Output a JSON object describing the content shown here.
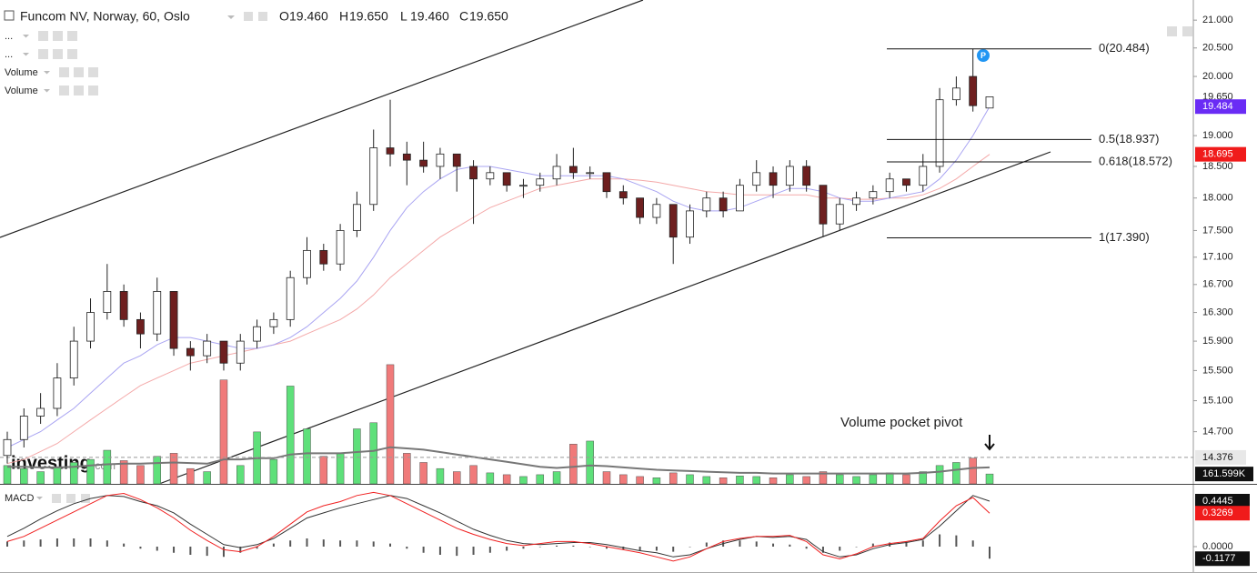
{
  "chart_data": {
    "type": "candlestick",
    "title": "Funcom NV, Norway, 60, Oslo",
    "ohlc": [
      {
        "key": "O",
        "value": 19.46,
        "label": "19.460"
      },
      {
        "key": "H",
        "value": 19.65,
        "label": "19.650"
      },
      {
        "key": "L",
        "value": 19.46,
        "label": "19.460"
      },
      {
        "key": "C",
        "value": 19.65,
        "label": "19.650"
      }
    ],
    "indicators": [
      "...",
      "...",
      "Volume",
      "Volume"
    ],
    "logo": {
      "name": "investing",
      "suffix": ".com"
    },
    "log_scale": true,
    "ylim": [
      14.05,
      21.37
    ],
    "yticks": [
      {
        "value": 21,
        "label": "21.000"
      },
      {
        "value": 20.5,
        "label": "20.500"
      },
      {
        "value": 20,
        "label": "20.000"
      },
      {
        "value": 19,
        "label": "19.000"
      },
      {
        "value": 18.5,
        "label": "18.500"
      },
      {
        "value": 18,
        "label": "18.000"
      },
      {
        "value": 17.5,
        "label": "17.500"
      },
      {
        "value": 17.1,
        "label": "17.100"
      },
      {
        "value": 16.7,
        "label": "16.700"
      },
      {
        "value": 16.3,
        "label": "16.300"
      },
      {
        "value": 15.9,
        "label": "15.900"
      },
      {
        "value": 15.5,
        "label": "15.500"
      },
      {
        "value": 15.1,
        "label": "15.100"
      },
      {
        "value": 14.7,
        "label": "14.700"
      }
    ],
    "up_color": "#ffffff",
    "down_color": "#6e1f1f",
    "candles": {
      "open": [
        14.4,
        14.6,
        14.9,
        15.0,
        15.4,
        15.9,
        16.3,
        16.6,
        16.2,
        16.0,
        16.6,
        15.8,
        15.7,
        15.9,
        15.6,
        15.9,
        16.1,
        16.2,
        16.8,
        17.2,
        17.0,
        17.5,
        17.9,
        18.8,
        18.7,
        18.6,
        18.5,
        18.7,
        18.5,
        18.3,
        18.4,
        18.2,
        18.2,
        18.3,
        18.5,
        18.4,
        18.4,
        18.1,
        18.0,
        17.7,
        17.9,
        17.4,
        17.8,
        18.0,
        17.8,
        18.2,
        18.4,
        18.2,
        18.5,
        18.2,
        17.6,
        17.9,
        18.0,
        18.1,
        18.3,
        18.2,
        18.5,
        19.6,
        20.0,
        19.46
      ],
      "high": [
        14.7,
        15.0,
        15.2,
        15.6,
        16.1,
        16.5,
        17.0,
        16.7,
        16.3,
        16.8,
        16.6,
        15.9,
        16.0,
        15.9,
        16.0,
        16.2,
        16.3,
        16.9,
        17.4,
        17.3,
        17.6,
        18.1,
        19.1,
        19.6,
        18.9,
        18.9,
        18.8,
        18.7,
        18.6,
        18.5,
        18.4,
        18.3,
        18.4,
        18.7,
        18.8,
        18.5,
        18.4,
        18.2,
        18.0,
        18.0,
        17.9,
        17.9,
        18.1,
        18.1,
        18.3,
        18.6,
        18.5,
        18.6,
        18.6,
        18.2,
        18.0,
        18.1,
        18.2,
        18.4,
        18.3,
        18.7,
        19.8,
        20.0,
        20.48,
        19.65
      ],
      "low": [
        14.3,
        14.5,
        14.8,
        14.9,
        15.3,
        15.8,
        16.2,
        16.1,
        15.8,
        15.9,
        15.7,
        15.5,
        15.6,
        15.5,
        15.5,
        15.8,
        16.0,
        16.1,
        16.7,
        16.9,
        16.9,
        17.4,
        17.8,
        18.5,
        18.2,
        18.4,
        18.3,
        18.1,
        17.6,
        18.2,
        18.1,
        18.0,
        18.1,
        18.2,
        18.3,
        18.3,
        18.0,
        17.9,
        17.6,
        17.6,
        17.0,
        17.3,
        17.7,
        17.7,
        17.8,
        18.1,
        18.0,
        18.1,
        18.1,
        17.4,
        17.5,
        17.8,
        17.9,
        18.0,
        18.1,
        18.1,
        18.4,
        19.5,
        19.4,
        19.46
      ],
      "close": [
        14.6,
        14.9,
        15.0,
        15.4,
        15.9,
        16.3,
        16.6,
        16.2,
        16.0,
        16.6,
        15.8,
        15.7,
        15.9,
        15.6,
        15.9,
        16.1,
        16.2,
        16.8,
        17.2,
        17.0,
        17.5,
        17.9,
        18.8,
        18.7,
        18.6,
        18.5,
        18.7,
        18.5,
        18.3,
        18.4,
        18.2,
        18.2,
        18.3,
        18.5,
        18.4,
        18.4,
        18.1,
        18.0,
        17.7,
        17.9,
        17.4,
        17.8,
        18.0,
        17.8,
        18.2,
        18.4,
        18.2,
        18.5,
        18.2,
        17.6,
        17.9,
        18.0,
        18.1,
        18.3,
        18.2,
        18.5,
        19.6,
        19.8,
        19.5,
        19.65
      ]
    },
    "last_price": {
      "value": 19.65,
      "label": "19.650"
    },
    "fast_ma": {
      "color": "#a9a4f2",
      "last": {
        "value": 19.484,
        "label": "19.484"
      },
      "label_color": "#6a2cf5",
      "values": [
        14.5,
        14.6,
        14.7,
        14.85,
        15.0,
        15.2,
        15.4,
        15.6,
        15.7,
        15.85,
        15.95,
        15.95,
        15.9,
        15.85,
        15.8,
        15.8,
        15.85,
        15.95,
        16.1,
        16.3,
        16.5,
        16.75,
        17.1,
        17.5,
        17.85,
        18.1,
        18.3,
        18.45,
        18.5,
        18.5,
        18.45,
        18.4,
        18.35,
        18.35,
        18.35,
        18.35,
        18.35,
        18.3,
        18.2,
        18.1,
        17.95,
        17.85,
        17.8,
        17.8,
        17.85,
        17.95,
        18.05,
        18.15,
        18.15,
        18.1,
        18.0,
        17.95,
        17.95,
        18.0,
        18.05,
        18.1,
        18.3,
        18.6,
        19.0,
        19.484
      ]
    },
    "slow_ma": {
      "color": "#f4a9a9",
      "last": {
        "value": 18.695,
        "label": "18.695"
      },
      "label_color": "#f01b1b",
      "values": [
        14.3,
        14.35,
        14.45,
        14.55,
        14.7,
        14.85,
        15.0,
        15.15,
        15.3,
        15.4,
        15.5,
        15.6,
        15.65,
        15.7,
        15.75,
        15.8,
        15.85,
        15.9,
        16.0,
        16.1,
        16.2,
        16.35,
        16.55,
        16.8,
        17.0,
        17.2,
        17.4,
        17.55,
        17.7,
        17.85,
        17.95,
        18.05,
        18.15,
        18.2,
        18.25,
        18.3,
        18.3,
        18.3,
        18.28,
        18.25,
        18.2,
        18.15,
        18.1,
        18.08,
        18.05,
        18.05,
        18.05,
        18.05,
        18.05,
        18.0,
        18.0,
        17.98,
        17.98,
        18.0,
        18.0,
        18.05,
        18.15,
        18.3,
        18.5,
        18.695
      ]
    },
    "fib_levels": [
      {
        "value": 20.484,
        "label": "0(20.484)"
      },
      {
        "value": 18.937,
        "label": "0.5(18.937)"
      },
      {
        "value": 18.572,
        "label": "0.618(18.572)"
      },
      {
        "value": 17.39,
        "label": "1(17.390)"
      }
    ],
    "price_line": {
      "value": 14.376,
      "label": "14.376"
    },
    "annotation": "Volume pocket pivot",
    "volume": {
      "ylim": [
        0,
        3600000
      ],
      "up_color": "#5ee07a",
      "down_color": "#f07a7a",
      "values": [
        300000,
        250000,
        200000,
        280000,
        350000,
        400000,
        550000,
        380000,
        300000,
        450000,
        500000,
        250000,
        200000,
        1700000,
        300000,
        850000,
        400000,
        1600000,
        900000,
        450000,
        500000,
        900000,
        1000000,
        1950000,
        500000,
        350000,
        250000,
        200000,
        300000,
        180000,
        150000,
        120000,
        150000,
        200000,
        650000,
        700000,
        200000,
        150000,
        120000,
        100000,
        180000,
        150000,
        120000,
        100000,
        130000,
        120000,
        100000,
        150000,
        120000,
        200000,
        150000,
        120000,
        150000,
        180000,
        150000,
        200000,
        300000,
        350000,
        420000,
        161599
      ],
      "last": {
        "value": 161599,
        "label": "161.599K"
      },
      "ma_color": "#777777",
      "ma": [
        280000,
        280000,
        270000,
        270000,
        280000,
        300000,
        320000,
        330000,
        330000,
        340000,
        350000,
        340000,
        330000,
        400000,
        400000,
        420000,
        420000,
        480000,
        500000,
        500000,
        500000,
        520000,
        540000,
        600000,
        580000,
        560000,
        520000,
        480000,
        440000,
        400000,
        360000,
        320000,
        280000,
        260000,
        280000,
        300000,
        290000,
        270000,
        250000,
        230000,
        220000,
        210000,
        200000,
        190000,
        180000,
        180000,
        170000,
        170000,
        170000,
        170000,
        170000,
        170000,
        170000,
        170000,
        170000,
        180000,
        200000,
        230000,
        260000,
        270000
      ]
    },
    "macd": {
      "title": "MACD",
      "ylim": [
        -0.24,
        0.56
      ],
      "yticks": [
        {
          "value": 0,
          "label": "0.0000"
        }
      ],
      "macd_color": "#333333",
      "signal_color": "#f02020",
      "hist_color": "#555555",
      "macd": [
        0.1,
        0.18,
        0.27,
        0.35,
        0.42,
        0.47,
        0.5,
        0.49,
        0.44,
        0.4,
        0.33,
        0.22,
        0.12,
        0.02,
        -0.01,
        0.02,
        0.08,
        0.18,
        0.28,
        0.33,
        0.38,
        0.42,
        0.46,
        0.5,
        0.47,
        0.4,
        0.33,
        0.25,
        0.17,
        0.11,
        0.06,
        0.03,
        0.02,
        0.03,
        0.04,
        0.04,
        0.02,
        -0.01,
        -0.04,
        -0.06,
        -0.1,
        -0.08,
        -0.02,
        0.03,
        0.07,
        0.1,
        0.09,
        0.1,
        0.07,
        -0.05,
        -0.1,
        -0.08,
        -0.02,
        0.02,
        0.04,
        0.07,
        0.2,
        0.35,
        0.5,
        0.4445
      ],
      "signal": [
        0.05,
        0.1,
        0.18,
        0.26,
        0.34,
        0.42,
        0.5,
        0.52,
        0.46,
        0.38,
        0.28,
        0.16,
        0.06,
        -0.03,
        -0.05,
        0.0,
        0.1,
        0.22,
        0.34,
        0.4,
        0.44,
        0.5,
        0.53,
        0.5,
        0.42,
        0.34,
        0.26,
        0.18,
        0.12,
        0.07,
        0.03,
        0.01,
        0.03,
        0.05,
        0.05,
        0.03,
        0.0,
        -0.03,
        -0.06,
        -0.1,
        -0.14,
        -0.1,
        -0.02,
        0.05,
        0.08,
        0.1,
        0.1,
        0.11,
        0.05,
        -0.08,
        -0.12,
        -0.07,
        0.0,
        0.03,
        0.05,
        0.08,
        0.25,
        0.4,
        0.48,
        0.3269
      ],
      "histogram": [
        0.05,
        0.06,
        0.07,
        0.08,
        0.08,
        0.08,
        0.06,
        0.03,
        -0.02,
        -0.04,
        -0.06,
        -0.08,
        -0.09,
        -0.1,
        -0.06,
        -0.02,
        0.03,
        0.06,
        0.08,
        0.07,
        0.06,
        0.06,
        0.05,
        0.03,
        -0.02,
        -0.06,
        -0.08,
        -0.09,
        -0.08,
        -0.06,
        -0.04,
        -0.02,
        0.0,
        0.01,
        0.01,
        0.0,
        -0.02,
        -0.03,
        -0.04,
        -0.04,
        -0.05,
        0.0,
        0.04,
        0.06,
        0.06,
        0.05,
        0.03,
        0.02,
        -0.02,
        -0.06,
        -0.04,
        0.0,
        0.03,
        0.04,
        0.05,
        0.06,
        0.12,
        0.11,
        0.06,
        -0.1177
      ],
      "last_labels": [
        {
          "value": 0.4445,
          "label": "0.4445",
          "color": "#111111"
        },
        {
          "value": 0.3269,
          "label": "0.3269",
          "color": "#f01b1b"
        },
        {
          "value": -0.1177,
          "label": "-0.1177",
          "color": "#111111"
        }
      ]
    }
  }
}
